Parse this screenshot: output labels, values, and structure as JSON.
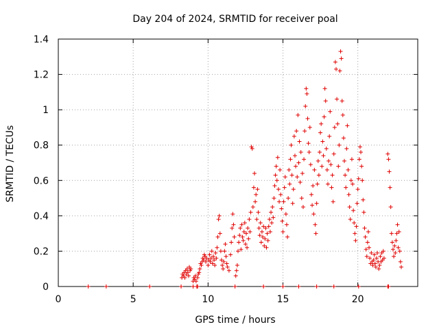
{
  "chart_data": {
    "type": "scatter",
    "title": "Day 204 of 2024, SRMTID for receiver poal",
    "xlabel": "GPS time / hours",
    "ylabel": "SRMTID / TECUs",
    "xlim": [
      0,
      24
    ],
    "ylim": [
      0,
      1.4
    ],
    "xticks": [
      "0",
      "5",
      "10",
      "15",
      "20"
    ],
    "yticks": [
      "0",
      "0.2",
      "0.4",
      "0.6",
      "0.8",
      "1",
      "1.2",
      "1.4"
    ],
    "grid": true,
    "marker": "plus",
    "series_color": "#e00000",
    "series": [
      {
        "name": "SRMTID",
        "points": [
          [
            2.0,
            0.0
          ],
          [
            6.1,
            0.0
          ],
          [
            8.2,
            0.0
          ],
          [
            8.25,
            0.05
          ],
          [
            8.3,
            0.07
          ],
          [
            8.35,
            0.06
          ],
          [
            8.4,
            0.08
          ],
          [
            8.45,
            0.05
          ],
          [
            8.5,
            0.09
          ],
          [
            8.55,
            0.07
          ],
          [
            8.6,
            0.1
          ],
          [
            8.65,
            0.08
          ],
          [
            8.7,
            0.06
          ],
          [
            8.75,
            0.11
          ],
          [
            8.8,
            0.09
          ],
          [
            8.85,
            0.1
          ],
          [
            9.0,
            0.0
          ],
          [
            9.0,
            0.03
          ],
          [
            9.05,
            0.05
          ],
          [
            9.1,
            0.04
          ],
          [
            9.15,
            0.06
          ],
          [
            9.2,
            0.03
          ],
          [
            9.3,
            0.0
          ],
          [
            9.3,
            0.05
          ],
          [
            9.35,
            0.07
          ],
          [
            9.4,
            0.08
          ],
          [
            9.45,
            0.1
          ],
          [
            9.5,
            0.13
          ],
          [
            9.55,
            0.12
          ],
          [
            9.6,
            0.14
          ],
          [
            9.65,
            0.16
          ],
          [
            9.7,
            0.15
          ],
          [
            9.75,
            0.18
          ],
          [
            9.8,
            0.17
          ],
          [
            9.85,
            0.14
          ],
          [
            9.9,
            0.16
          ],
          [
            10.0,
            0.12
          ],
          [
            10.05,
            0.15
          ],
          [
            10.1,
            0.18
          ],
          [
            10.15,
            0.14
          ],
          [
            10.2,
            0.16
          ],
          [
            10.25,
            0.2
          ],
          [
            10.3,
            0.13
          ],
          [
            10.35,
            0.17
          ],
          [
            10.4,
            0.15
          ],
          [
            10.45,
            0.12
          ],
          [
            10.5,
            0.19
          ],
          [
            10.55,
            0.16
          ],
          [
            10.6,
            0.22
          ],
          [
            10.65,
            0.28
          ],
          [
            10.7,
            0.38
          ],
          [
            10.75,
            0.4
          ],
          [
            10.8,
            0.3
          ],
          [
            10.85,
            0.2
          ],
          [
            10.9,
            0.15
          ],
          [
            10.95,
            0.12
          ],
          [
            11.0,
            0.1
          ],
          [
            11.05,
            0.14
          ],
          [
            11.1,
            0.2
          ],
          [
            11.15,
            0.24
          ],
          [
            11.2,
            0.17
          ],
          [
            11.25,
            0.13
          ],
          [
            11.3,
            0.11
          ],
          [
            11.4,
            0.09
          ],
          [
            11.5,
            0.18
          ],
          [
            11.55,
            0.25
          ],
          [
            11.6,
            0.33
          ],
          [
            11.65,
            0.41
          ],
          [
            11.7,
            0.35
          ],
          [
            11.75,
            0.28
          ],
          [
            11.8,
            0.0
          ],
          [
            11.85,
            0.06
          ],
          [
            11.9,
            0.09
          ],
          [
            11.95,
            0.12
          ],
          [
            12.0,
            0.2
          ],
          [
            12.05,
            0.25
          ],
          [
            12.1,
            0.29
          ],
          [
            12.15,
            0.33
          ],
          [
            12.2,
            0.21
          ],
          [
            12.25,
            0.35
          ],
          [
            12.3,
            0.28
          ],
          [
            12.35,
            0.26
          ],
          [
            12.4,
            0.31
          ],
          [
            12.45,
            0.36
          ],
          [
            12.5,
            0.24
          ],
          [
            12.55,
            0.3
          ],
          [
            12.6,
            0.22
          ],
          [
            12.65,
            0.33
          ],
          [
            12.7,
            0.27
          ],
          [
            12.75,
            0.38
          ],
          [
            12.8,
            0.31
          ],
          [
            12.85,
            0.42
          ],
          [
            12.9,
            0.79
          ],
          [
            12.95,
            0.78
          ],
          [
            13.0,
            0.45
          ],
          [
            13.05,
            0.56
          ],
          [
            13.1,
            0.64
          ],
          [
            13.15,
            0.48
          ],
          [
            13.2,
            0.52
          ],
          [
            13.25,
            0.38
          ],
          [
            13.3,
            0.55
          ],
          [
            13.35,
            0.42
          ],
          [
            13.4,
            0.33
          ],
          [
            13.45,
            0.29
          ],
          [
            13.5,
            0.36
          ],
          [
            13.55,
            0.25
          ],
          [
            13.6,
            0.31
          ],
          [
            13.65,
            0.28
          ],
          [
            13.7,
            0.34
          ],
          [
            13.75,
            0.23
          ],
          [
            13.8,
            0.27
          ],
          [
            13.85,
            0.33
          ],
          [
            13.9,
            0.22
          ],
          [
            13.95,
            0.3
          ],
          [
            14.0,
            0.26
          ],
          [
            14.05,
            0.34
          ],
          [
            14.1,
            0.38
          ],
          [
            14.15,
            0.31
          ],
          [
            14.2,
            0.42
          ],
          [
            14.25,
            0.36
          ],
          [
            14.3,
            0.45
          ],
          [
            14.35,
            0.39
          ],
          [
            14.4,
            0.5
          ],
          [
            14.45,
            0.57
          ],
          [
            14.5,
            0.63
          ],
          [
            14.55,
            0.68
          ],
          [
            14.6,
            0.6
          ],
          [
            14.65,
            0.73
          ],
          [
            14.7,
            0.55
          ],
          [
            14.75,
            0.48
          ],
          [
            14.8,
            0.66
          ],
          [
            14.85,
            0.52
          ],
          [
            14.9,
            0.44
          ],
          [
            14.95,
            0.37
          ],
          [
            15.0,
            0.31
          ],
          [
            15.05,
            0.48
          ],
          [
            15.1,
            0.56
          ],
          [
            15.15,
            0.62
          ],
          [
            15.2,
            0.41
          ],
          [
            15.25,
            0.35
          ],
          [
            15.3,
            0.28
          ],
          [
            15.35,
            0.5
          ],
          [
            15.4,
            0.66
          ],
          [
            15.45,
            0.58
          ],
          [
            15.5,
            0.72
          ],
          [
            15.55,
            0.8
          ],
          [
            15.6,
            0.63
          ],
          [
            15.65,
            0.47
          ],
          [
            15.7,
            0.55
          ],
          [
            15.75,
            0.85
          ],
          [
            15.8,
            0.74
          ],
          [
            15.85,
            0.68
          ],
          [
            15.9,
            0.88
          ],
          [
            15.95,
            0.62
          ],
          [
            16.0,
            0.97
          ],
          [
            16.05,
            0.7
          ],
          [
            16.1,
            0.82
          ],
          [
            16.15,
            0.59
          ],
          [
            16.2,
            0.76
          ],
          [
            16.25,
            0.5
          ],
          [
            16.3,
            0.64
          ],
          [
            16.35,
            0.45
          ],
          [
            16.4,
            0.72
          ],
          [
            16.45,
            0.88
          ],
          [
            16.5,
            1.02
          ],
          [
            16.55,
            1.12
          ],
          [
            16.6,
            1.09
          ],
          [
            16.65,
            0.95
          ],
          [
            16.7,
            0.81
          ],
          [
            16.75,
            0.76
          ],
          [
            16.8,
            0.9
          ],
          [
            16.85,
            0.69
          ],
          [
            16.9,
            0.52
          ],
          [
            16.95,
            0.46
          ],
          [
            17.0,
            0.57
          ],
          [
            17.05,
            0.41
          ],
          [
            17.1,
            0.66
          ],
          [
            17.15,
            0.35
          ],
          [
            17.2,
            0.3
          ],
          [
            17.25,
            0.47
          ],
          [
            17.3,
            0.58
          ],
          [
            17.35,
            0.71
          ],
          [
            17.4,
            0.63
          ],
          [
            17.45,
            0.76
          ],
          [
            17.5,
            0.87
          ],
          [
            17.55,
            0.92
          ],
          [
            17.6,
            0.68
          ],
          [
            17.65,
            0.82
          ],
          [
            17.7,
            0.74
          ],
          [
            17.75,
            0.96
          ],
          [
            17.8,
            1.12
          ],
          [
            17.85,
            1.05
          ],
          [
            17.9,
            0.78
          ],
          [
            17.95,
            0.66
          ],
          [
            18.0,
            0.58
          ],
          [
            18.05,
            0.71
          ],
          [
            18.1,
            0.85
          ],
          [
            18.15,
            0.99
          ],
          [
            18.2,
            0.69
          ],
          [
            18.25,
            0.56
          ],
          [
            18.3,
            0.63
          ],
          [
            18.35,
            0.48
          ],
          [
            18.4,
            0.75
          ],
          [
            18.45,
            0.9
          ],
          [
            18.5,
            1.27
          ],
          [
            18.55,
            1.23
          ],
          [
            18.6,
            1.06
          ],
          [
            18.65,
            0.92
          ],
          [
            18.7,
            0.68
          ],
          [
            18.75,
            0.8
          ],
          [
            18.8,
            1.22
          ],
          [
            18.85,
            1.33
          ],
          [
            18.9,
            1.29
          ],
          [
            18.95,
            1.05
          ],
          [
            19.0,
            0.97
          ],
          [
            19.05,
            0.84
          ],
          [
            19.1,
            0.71
          ],
          [
            19.15,
            0.63
          ],
          [
            19.2,
            0.56
          ],
          [
            19.25,
            0.78
          ],
          [
            19.3,
            0.91
          ],
          [
            19.35,
            0.66
          ],
          [
            19.4,
            0.52
          ],
          [
            19.45,
            0.45
          ],
          [
            19.5,
            0.38
          ],
          [
            19.55,
            0.6
          ],
          [
            19.6,
            0.72
          ],
          [
            19.65,
            0.58
          ],
          [
            19.7,
            0.43
          ],
          [
            19.75,
            0.36
          ],
          [
            19.8,
            0.3
          ],
          [
            19.85,
            0.26
          ],
          [
            19.9,
            0.34
          ],
          [
            19.95,
            0.47
          ],
          [
            20.0,
            0.55
          ],
          [
            20.05,
            0.61
          ],
          [
            20.1,
            0.72
          ],
          [
            20.15,
            0.79
          ],
          [
            20.2,
            0.76
          ],
          [
            20.25,
            0.68
          ],
          [
            20.3,
            0.6
          ],
          [
            20.35,
            0.49
          ],
          [
            20.4,
            0.42
          ],
          [
            20.45,
            0.33
          ],
          [
            20.5,
            0.28
          ],
          [
            20.55,
            0.21
          ],
          [
            20.6,
            0.17
          ],
          [
            20.65,
            0.25
          ],
          [
            20.7,
            0.31
          ],
          [
            20.75,
            0.22
          ],
          [
            20.8,
            0.16
          ],
          [
            20.85,
            0.13
          ],
          [
            20.9,
            0.19
          ],
          [
            20.95,
            0.14
          ],
          [
            21.0,
            0.12
          ],
          [
            21.05,
            0.15
          ],
          [
            21.1,
            0.18
          ],
          [
            21.15,
            0.13
          ],
          [
            21.2,
            0.11
          ],
          [
            21.25,
            0.16
          ],
          [
            21.3,
            0.19
          ],
          [
            21.35,
            0.14
          ],
          [
            21.4,
            0.1
          ],
          [
            21.45,
            0.12
          ],
          [
            21.5,
            0.17
          ],
          [
            21.55,
            0.14
          ],
          [
            21.6,
            0.19
          ],
          [
            21.65,
            0.15
          ],
          [
            21.7,
            0.2
          ],
          [
            21.75,
            0.16
          ],
          [
            22.0,
            0.0
          ],
          [
            22.0,
            0.75
          ],
          [
            22.05,
            0.72
          ],
          [
            22.1,
            0.65
          ],
          [
            22.15,
            0.56
          ],
          [
            22.2,
            0.45
          ],
          [
            22.25,
            0.3
          ],
          [
            22.3,
            0.25
          ],
          [
            22.35,
            0.21
          ],
          [
            22.4,
            0.17
          ],
          [
            22.45,
            0.23
          ],
          [
            22.5,
            0.19
          ],
          [
            22.55,
            0.26
          ],
          [
            22.6,
            0.3
          ],
          [
            22.65,
            0.35
          ],
          [
            22.7,
            0.22
          ],
          [
            22.75,
            0.31
          ],
          [
            22.8,
            0.2
          ],
          [
            22.85,
            0.14
          ],
          [
            22.9,
            0.11
          ],
          [
            3.2,
            0.0
          ],
          [
            9.25,
            0.0
          ],
          [
            13.7,
            0.0
          ],
          [
            15.0,
            0.0
          ],
          [
            16.05,
            0.0
          ],
          [
            17.25,
            0.0
          ],
          [
            18.4,
            0.0
          ],
          [
            20.05,
            0.0
          ],
          [
            22.05,
            0.0
          ]
        ]
      }
    ]
  }
}
